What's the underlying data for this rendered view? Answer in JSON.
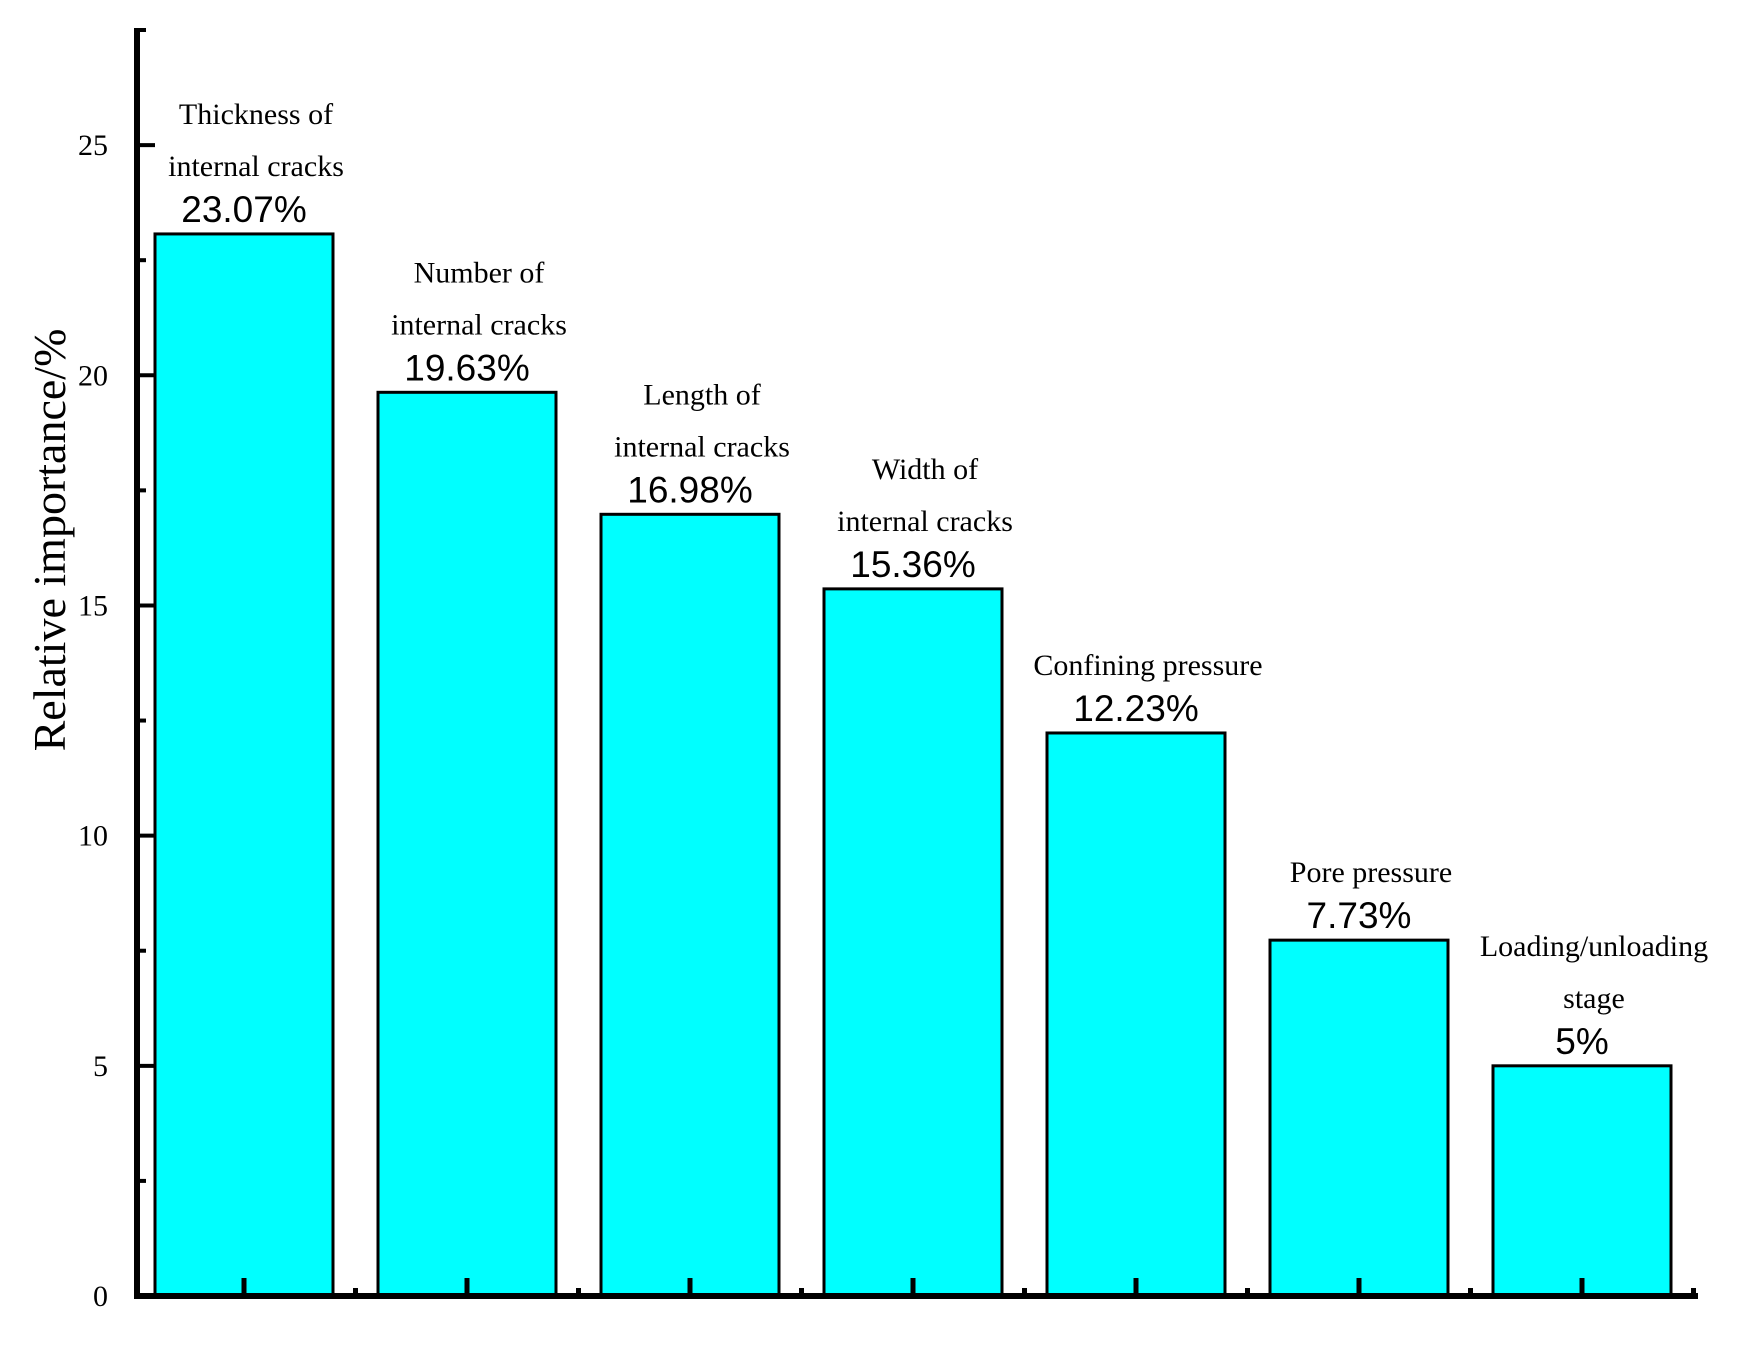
{
  "chart_data": {
    "type": "bar",
    "title": "",
    "xlabel": "",
    "ylabel": "Relative importance/%",
    "ylim": [
      0,
      27.5
    ],
    "yticks": [
      0,
      5,
      10,
      15,
      20,
      25
    ],
    "grid": false,
    "bar_color": "#00FFFF",
    "categories": [
      [
        "Thickness of",
        "internal cracks"
      ],
      [
        "Number of",
        "internal cracks"
      ],
      [
        "Length of",
        "internal cracks"
      ],
      [
        "Width of",
        "internal cracks"
      ],
      [
        "Confining pressure"
      ],
      [
        "Pore pressure"
      ],
      [
        "Loading/unloading",
        "stage"
      ]
    ],
    "values": [
      23.07,
      19.63,
      16.98,
      15.36,
      12.23,
      7.73,
      5
    ],
    "value_labels": [
      "23.07%",
      "19.63%",
      "16.98%",
      "15.36%",
      "12.23%",
      "7.73%",
      "5%"
    ]
  }
}
